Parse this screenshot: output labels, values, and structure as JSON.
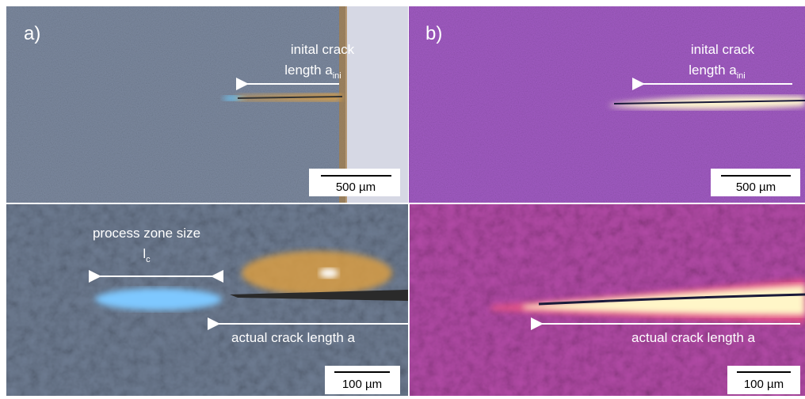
{
  "panel_a": {
    "label": "a)",
    "top": {
      "crack_label_line1": "inital crack",
      "crack_label_line2": "length a",
      "crack_label_sub": "ini",
      "scale_bar": "500 µm"
    },
    "bottom": {
      "zone_label_line1": "process zone size",
      "zone_label_symbol": "l",
      "zone_label_sub": "c",
      "crack_label": "actual crack length a",
      "scale_bar": "100 µm"
    }
  },
  "panel_b": {
    "label": "b)",
    "top": {
      "crack_label_line1": "inital crack",
      "crack_label_line2": "length a",
      "crack_label_sub": "ini",
      "scale_bar": "500 µm"
    },
    "bottom": {
      "crack_label": "actual crack length a",
      "scale_bar": "100 µm"
    }
  }
}
